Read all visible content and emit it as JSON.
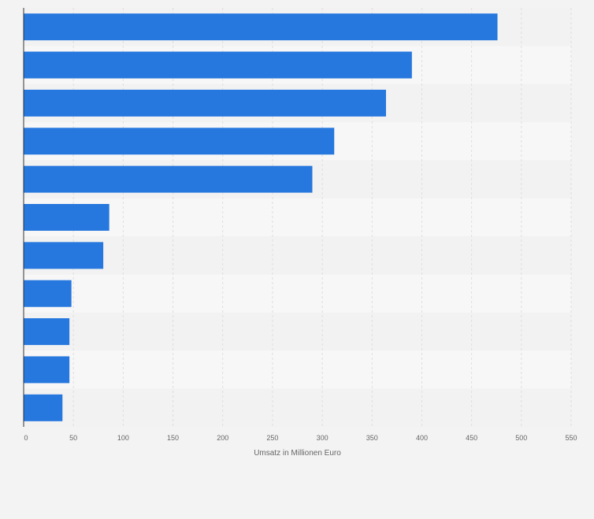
{
  "chart_data": {
    "type": "bar",
    "orientation": "horizontal",
    "categories": [
      "",
      "",
      "",
      "",
      "",
      "",
      "",
      "",
      "",
      "",
      ""
    ],
    "values": [
      476,
      390,
      364,
      312,
      290,
      86,
      80,
      48,
      46,
      46,
      39
    ],
    "xlabel": "Umsatz in Millionen Euro",
    "xlim": [
      0,
      550
    ],
    "xticks": [
      0,
      50,
      100,
      150,
      200,
      250,
      300,
      350,
      400,
      450,
      500,
      550
    ],
    "grid": true,
    "colors": {
      "bar": "#2677de",
      "band_a": "#f2f2f2",
      "band_b": "#f7f7f7",
      "grid": "#dedede",
      "axis": "#333333"
    }
  }
}
